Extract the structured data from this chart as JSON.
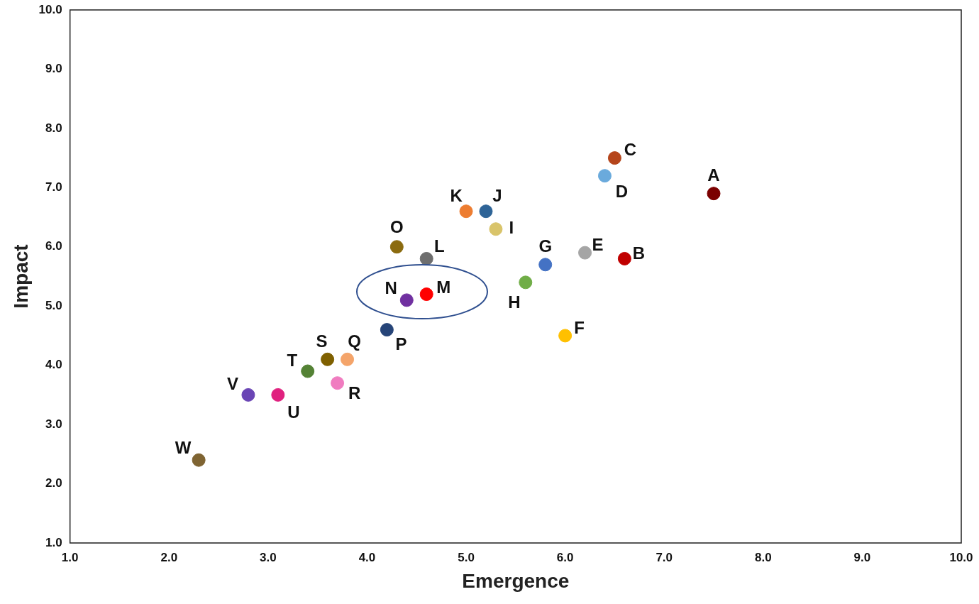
{
  "chart_data": {
    "type": "scatter",
    "xlabel": "Emergence",
    "ylabel": "Impact",
    "xlim": [
      1,
      10
    ],
    "ylim": [
      1,
      10
    ],
    "xticks": [
      {
        "value": 1,
        "label": "1.0"
      },
      {
        "value": 2,
        "label": "2.0"
      },
      {
        "value": 3,
        "label": "3.0"
      },
      {
        "value": 4,
        "label": "4.0"
      },
      {
        "value": 5,
        "label": "5.0"
      },
      {
        "value": 6,
        "label": "6.0"
      },
      {
        "value": 7,
        "label": "7.0"
      },
      {
        "value": 8,
        "label": "8.0"
      },
      {
        "value": 9,
        "label": "9.0"
      },
      {
        "value": 10,
        "label": "10.0"
      }
    ],
    "yticks": [
      {
        "value": 1,
        "label": "1.0"
      },
      {
        "value": 2,
        "label": "2.0"
      },
      {
        "value": 3,
        "label": "3.0"
      },
      {
        "value": 4,
        "label": "4.0"
      },
      {
        "value": 5,
        "label": "5.0"
      },
      {
        "value": 6,
        "label": "6.0"
      },
      {
        "value": 7,
        "label": "7.0"
      },
      {
        "value": 8,
        "label": "8.0"
      },
      {
        "value": 9,
        "label": "9.0"
      },
      {
        "value": 10,
        "label": "10.0"
      }
    ],
    "grid": false,
    "legend": false,
    "marker": "circle",
    "series": [
      {
        "name": "A",
        "color": "#7b0000",
        "x": [
          7.5
        ],
        "values": [
          6.9
        ]
      },
      {
        "name": "B",
        "color": "#c00000",
        "x": [
          6.6
        ],
        "values": [
          5.8
        ]
      },
      {
        "name": "C",
        "color": "#b5451b",
        "x": [
          6.5
        ],
        "values": [
          7.5
        ]
      },
      {
        "name": "D",
        "color": "#6aaadc",
        "x": [
          6.4
        ],
        "values": [
          7.2
        ]
      },
      {
        "name": "E",
        "color": "#a5a5a5",
        "x": [
          6.2
        ],
        "values": [
          5.9
        ]
      },
      {
        "name": "F",
        "color": "#ffc000",
        "x": [
          6.0
        ],
        "values": [
          4.5
        ]
      },
      {
        "name": "G",
        "color": "#4472c4",
        "x": [
          5.8
        ],
        "values": [
          5.7
        ]
      },
      {
        "name": "H",
        "color": "#70ad47",
        "x": [
          5.6
        ],
        "values": [
          5.4
        ]
      },
      {
        "name": "I",
        "color": "#d9c46a",
        "x": [
          5.3
        ],
        "values": [
          6.3
        ]
      },
      {
        "name": "J",
        "color": "#2e6497",
        "x": [
          5.2
        ],
        "values": [
          6.6
        ]
      },
      {
        "name": "K",
        "color": "#ed7d31",
        "x": [
          5.0
        ],
        "values": [
          6.6
        ]
      },
      {
        "name": "L",
        "color": "#6e6e6e",
        "x": [
          4.6
        ],
        "values": [
          5.8
        ]
      },
      {
        "name": "M",
        "color": "#ff0000",
        "x": [
          4.6
        ],
        "values": [
          5.2
        ]
      },
      {
        "name": "N",
        "color": "#7030a0",
        "x": [
          4.4
        ],
        "values": [
          5.1
        ]
      },
      {
        "name": "O",
        "color": "#8b6b0f",
        "x": [
          4.3
        ],
        "values": [
          6.0
        ]
      },
      {
        "name": "P",
        "color": "#264478",
        "x": [
          4.2
        ],
        "values": [
          4.6
        ]
      },
      {
        "name": "Q",
        "color": "#f4a46a",
        "x": [
          3.8
        ],
        "values": [
          4.1
        ]
      },
      {
        "name": "R",
        "color": "#f07cc0",
        "x": [
          3.7
        ],
        "values": [
          3.7
        ]
      },
      {
        "name": "S",
        "color": "#7f6000",
        "x": [
          3.6
        ],
        "values": [
          4.1
        ]
      },
      {
        "name": "T",
        "color": "#548235",
        "x": [
          3.4
        ],
        "values": [
          3.9
        ]
      },
      {
        "name": "U",
        "color": "#e0217f",
        "x": [
          3.1
        ],
        "values": [
          3.5
        ]
      },
      {
        "name": "V",
        "color": "#6a45b5",
        "x": [
          2.8
        ],
        "values": [
          3.5
        ]
      },
      {
        "name": "W",
        "color": "#7f6432",
        "x": [
          2.3
        ],
        "values": [
          2.4
        ]
      }
    ]
  }
}
